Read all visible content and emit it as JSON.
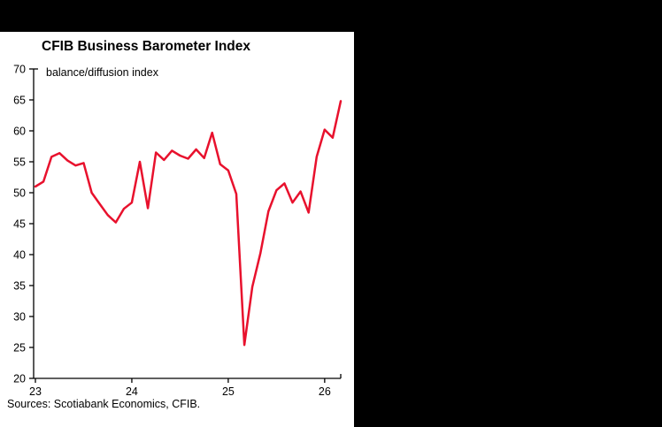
{
  "page": {
    "title": "CFIB Business Barometer Index",
    "subtitle": "balance/diffusion index",
    "source": "Sources: Scotiabank Economics, CFIB."
  },
  "colors": {
    "line": "#E8112D",
    "axis": "#000000",
    "text": "#000000",
    "panel_bg": "#FFFFFF",
    "page_bg": "#000000"
  },
  "chart_data": {
    "type": "line",
    "title": "CFIB Business Barometer Index",
    "subtitle": "balance/diffusion index",
    "source": "Sources: Scotiabank Economics, CFIB.",
    "series_name": "CFIB Business Barometer Index",
    "xlabel": "",
    "ylabel": "balance/diffusion index",
    "x": [
      "2023-01",
      "2023-02",
      "2023-03",
      "2023-04",
      "2023-05",
      "2023-06",
      "2023-07",
      "2023-08",
      "2023-09",
      "2023-10",
      "2023-11",
      "2023-12",
      "2024-01",
      "2024-02",
      "2024-03",
      "2024-04",
      "2024-05",
      "2024-06",
      "2024-07",
      "2024-08",
      "2024-09",
      "2024-10",
      "2024-11",
      "2024-12",
      "2025-01",
      "2025-02",
      "2025-03",
      "2025-04",
      "2025-05",
      "2025-06",
      "2025-07",
      "2025-08",
      "2025-09",
      "2025-10",
      "2025-11",
      "2025-12",
      "2026-01",
      "2026-02",
      "2026-03"
    ],
    "values": [
      51.0,
      51.8,
      55.8,
      56.4,
      55.2,
      54.4,
      54.8,
      50.0,
      48.2,
      46.4,
      45.2,
      47.4,
      48.4,
      55.0,
      47.5,
      56.5,
      55.3,
      56.8,
      56.0,
      55.5,
      57.0,
      55.6,
      59.7,
      54.6,
      53.6,
      49.8,
      25.4,
      34.8,
      40.2,
      47.0,
      50.4,
      51.5,
      48.4,
      50.2,
      46.8,
      55.8,
      60.2,
      58.9,
      64.8
    ],
    "ylim": [
      20,
      70
    ],
    "yticks": [
      70,
      65,
      60,
      55,
      50,
      45,
      40,
      35,
      30,
      25,
      20
    ],
    "xticks": [
      {
        "index": 0,
        "label": "23"
      },
      {
        "index": 12,
        "label": "24"
      },
      {
        "index": 24,
        "label": "25"
      },
      {
        "index": 36,
        "label": "26"
      }
    ],
    "grid": false,
    "legend_position": "none",
    "line_color": "#E8112D"
  }
}
